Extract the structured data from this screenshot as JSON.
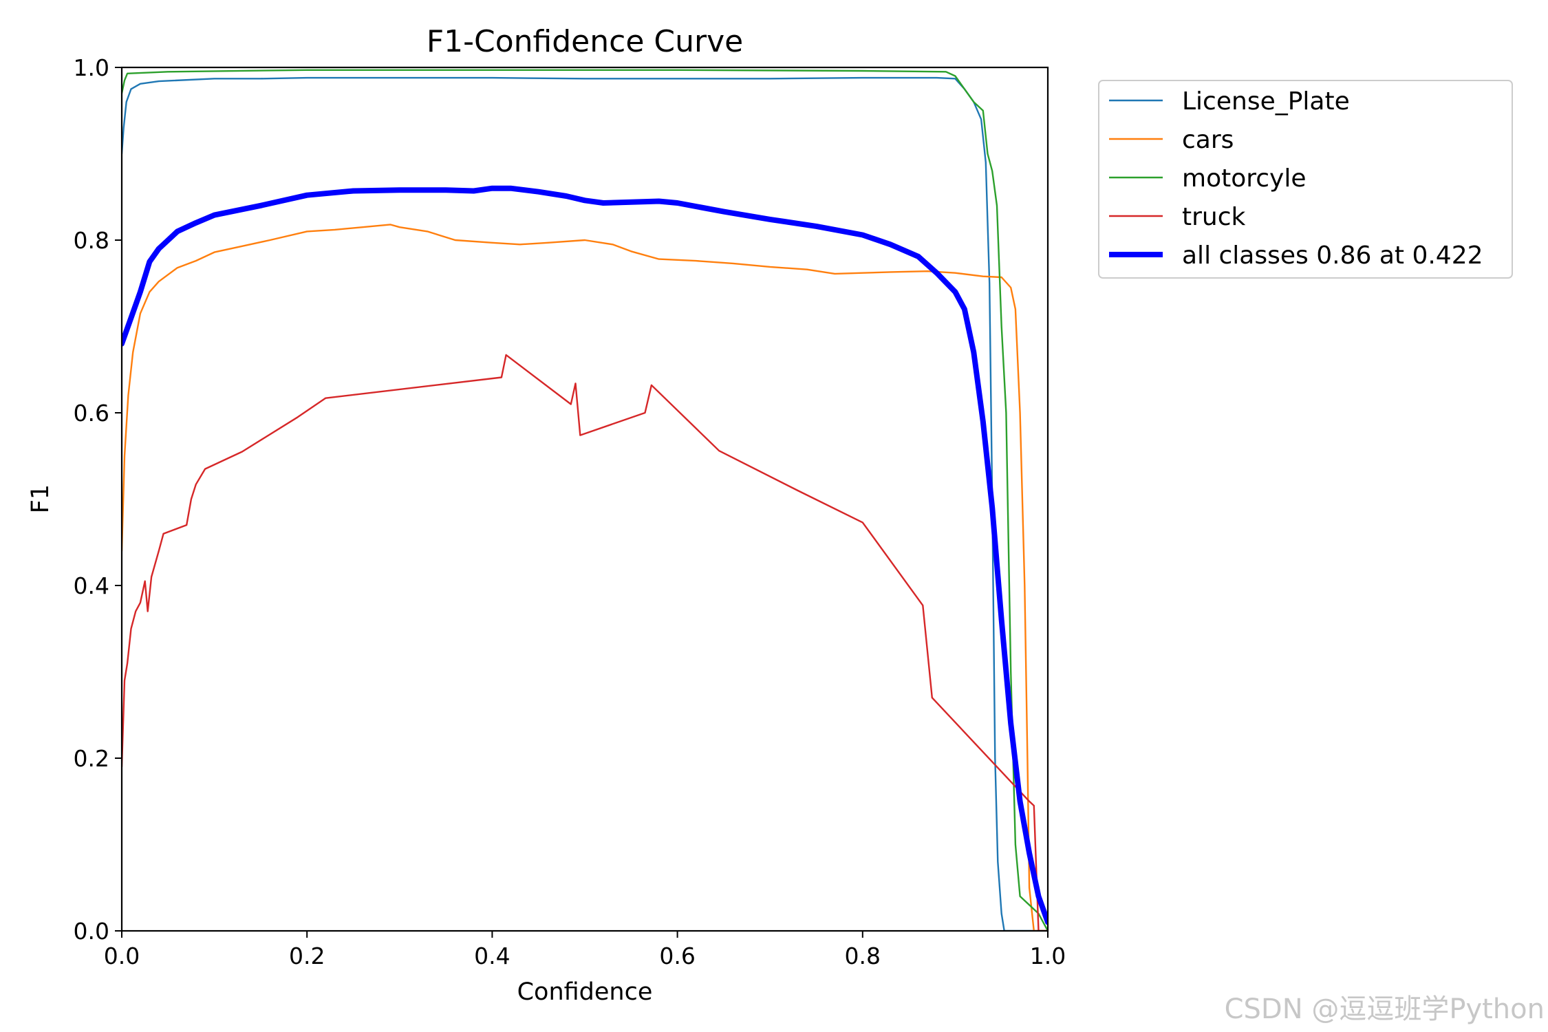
{
  "chart_data": {
    "type": "line",
    "title": "F1-Confidence Curve",
    "xlabel": "Confidence",
    "ylabel": "F1",
    "xlim": [
      0.0,
      1.0
    ],
    "ylim": [
      0.0,
      1.0
    ],
    "xticks": [
      "0.0",
      "0.2",
      "0.4",
      "0.6",
      "0.8",
      "1.0"
    ],
    "yticks": [
      "0.0",
      "0.2",
      "0.4",
      "0.6",
      "0.8",
      "1.0"
    ],
    "grid": false,
    "legend_position": "outside-top-right",
    "series": [
      {
        "name": "License_Plate",
        "color": "#1f77b4",
        "points": [
          [
            0.0,
            0.9
          ],
          [
            0.002,
            0.93
          ],
          [
            0.005,
            0.96
          ],
          [
            0.01,
            0.975
          ],
          [
            0.02,
            0.981
          ],
          [
            0.04,
            0.984
          ],
          [
            0.1,
            0.987
          ],
          [
            0.15,
            0.987
          ],
          [
            0.2,
            0.988
          ],
          [
            0.3,
            0.988
          ],
          [
            0.4,
            0.988
          ],
          [
            0.5,
            0.987
          ],
          [
            0.6,
            0.987
          ],
          [
            0.7,
            0.987
          ],
          [
            0.8,
            0.988
          ],
          [
            0.88,
            0.988
          ],
          [
            0.9,
            0.987
          ],
          [
            0.91,
            0.975
          ],
          [
            0.92,
            0.96
          ],
          [
            0.928,
            0.94
          ],
          [
            0.933,
            0.89
          ],
          [
            0.937,
            0.75
          ],
          [
            0.94,
            0.5
          ],
          [
            0.943,
            0.2
          ],
          [
            0.946,
            0.08
          ],
          [
            0.95,
            0.02
          ],
          [
            0.953,
            0.0
          ],
          [
            1.0,
            0.0
          ]
        ]
      },
      {
        "name": "cars",
        "color": "#ff7f0e",
        "points": [
          [
            0.0,
            0.44
          ],
          [
            0.003,
            0.55
          ],
          [
            0.007,
            0.62
          ],
          [
            0.012,
            0.67
          ],
          [
            0.02,
            0.715
          ],
          [
            0.03,
            0.74
          ],
          [
            0.04,
            0.752
          ],
          [
            0.06,
            0.768
          ],
          [
            0.08,
            0.776
          ],
          [
            0.1,
            0.786
          ],
          [
            0.13,
            0.793
          ],
          [
            0.16,
            0.8
          ],
          [
            0.2,
            0.81
          ],
          [
            0.23,
            0.812
          ],
          [
            0.26,
            0.815
          ],
          [
            0.29,
            0.818
          ],
          [
            0.3,
            0.815
          ],
          [
            0.33,
            0.81
          ],
          [
            0.36,
            0.8
          ],
          [
            0.4,
            0.797
          ],
          [
            0.43,
            0.795
          ],
          [
            0.46,
            0.797
          ],
          [
            0.5,
            0.8
          ],
          [
            0.53,
            0.795
          ],
          [
            0.55,
            0.787
          ],
          [
            0.58,
            0.778
          ],
          [
            0.62,
            0.776
          ],
          [
            0.66,
            0.773
          ],
          [
            0.7,
            0.769
          ],
          [
            0.74,
            0.766
          ],
          [
            0.77,
            0.761
          ],
          [
            0.8,
            0.762
          ],
          [
            0.83,
            0.763
          ],
          [
            0.87,
            0.764
          ],
          [
            0.9,
            0.762
          ],
          [
            0.93,
            0.758
          ],
          [
            0.95,
            0.757
          ],
          [
            0.96,
            0.745
          ],
          [
            0.965,
            0.72
          ],
          [
            0.97,
            0.6
          ],
          [
            0.975,
            0.4
          ],
          [
            0.978,
            0.2
          ],
          [
            0.98,
            0.05
          ],
          [
            0.985,
            0.0
          ],
          [
            1.0,
            0.0
          ]
        ]
      },
      {
        "name": "motorcyle",
        "color": "#2ca02c",
        "points": [
          [
            0.0,
            0.97
          ],
          [
            0.003,
            0.985
          ],
          [
            0.006,
            0.993
          ],
          [
            0.05,
            0.995
          ],
          [
            0.2,
            0.997
          ],
          [
            0.4,
            0.997
          ],
          [
            0.6,
            0.997
          ],
          [
            0.8,
            0.996
          ],
          [
            0.89,
            0.995
          ],
          [
            0.9,
            0.99
          ],
          [
            0.91,
            0.975
          ],
          [
            0.92,
            0.96
          ],
          [
            0.93,
            0.95
          ],
          [
            0.935,
            0.9
          ],
          [
            0.94,
            0.88
          ],
          [
            0.945,
            0.84
          ],
          [
            0.95,
            0.7
          ],
          [
            0.955,
            0.6
          ],
          [
            0.96,
            0.3
          ],
          [
            0.965,
            0.1
          ],
          [
            0.97,
            0.04
          ],
          [
            0.99,
            0.02
          ],
          [
            1.0,
            0.0
          ]
        ]
      },
      {
        "name": "truck",
        "color": "#d62728",
        "points": [
          [
            0.0,
            0.19
          ],
          [
            0.003,
            0.29
          ],
          [
            0.006,
            0.31
          ],
          [
            0.01,
            0.35
          ],
          [
            0.015,
            0.37
          ],
          [
            0.02,
            0.38
          ],
          [
            0.025,
            0.405
          ],
          [
            0.028,
            0.37
          ],
          [
            0.032,
            0.41
          ],
          [
            0.04,
            0.44
          ],
          [
            0.045,
            0.46
          ],
          [
            0.07,
            0.47
          ],
          [
            0.075,
            0.5
          ],
          [
            0.08,
            0.517
          ],
          [
            0.09,
            0.535
          ],
          [
            0.13,
            0.555
          ],
          [
            0.19,
            0.595
          ],
          [
            0.22,
            0.617
          ],
          [
            0.41,
            0.641
          ],
          [
            0.415,
            0.667
          ],
          [
            0.485,
            0.61
          ],
          [
            0.49,
            0.634
          ],
          [
            0.495,
            0.574
          ],
          [
            0.565,
            0.6
          ],
          [
            0.572,
            0.632
          ],
          [
            0.645,
            0.556
          ],
          [
            0.73,
            0.51
          ],
          [
            0.8,
            0.473
          ],
          [
            0.865,
            0.377
          ],
          [
            0.875,
            0.27
          ],
          [
            0.98,
            0.15
          ],
          [
            0.985,
            0.145
          ],
          [
            0.99,
            0.0
          ],
          [
            1.0,
            0.0
          ]
        ]
      },
      {
        "name": "all classes 0.86 at 0.422",
        "color": "#0000ff",
        "bold": true,
        "points": [
          [
            0.0,
            0.68
          ],
          [
            0.01,
            0.71
          ],
          [
            0.02,
            0.74
          ],
          [
            0.03,
            0.775
          ],
          [
            0.04,
            0.79
          ],
          [
            0.05,
            0.8
          ],
          [
            0.06,
            0.81
          ],
          [
            0.08,
            0.82
          ],
          [
            0.1,
            0.829
          ],
          [
            0.15,
            0.84
          ],
          [
            0.2,
            0.852
          ],
          [
            0.25,
            0.857
          ],
          [
            0.3,
            0.858
          ],
          [
            0.35,
            0.858
          ],
          [
            0.38,
            0.857
          ],
          [
            0.4,
            0.86
          ],
          [
            0.42,
            0.86
          ],
          [
            0.45,
            0.856
          ],
          [
            0.48,
            0.851
          ],
          [
            0.5,
            0.846
          ],
          [
            0.52,
            0.843
          ],
          [
            0.55,
            0.844
          ],
          [
            0.58,
            0.845
          ],
          [
            0.6,
            0.843
          ],
          [
            0.65,
            0.833
          ],
          [
            0.7,
            0.824
          ],
          [
            0.75,
            0.816
          ],
          [
            0.8,
            0.806
          ],
          [
            0.83,
            0.795
          ],
          [
            0.86,
            0.781
          ],
          [
            0.88,
            0.762
          ],
          [
            0.9,
            0.74
          ],
          [
            0.91,
            0.72
          ],
          [
            0.92,
            0.67
          ],
          [
            0.93,
            0.59
          ],
          [
            0.94,
            0.49
          ],
          [
            0.95,
            0.36
          ],
          [
            0.96,
            0.24
          ],
          [
            0.97,
            0.15
          ],
          [
            0.98,
            0.09
          ],
          [
            0.99,
            0.04
          ],
          [
            1.0,
            0.01
          ]
        ]
      }
    ]
  },
  "watermark": "CSDN @逗逗班学Python"
}
